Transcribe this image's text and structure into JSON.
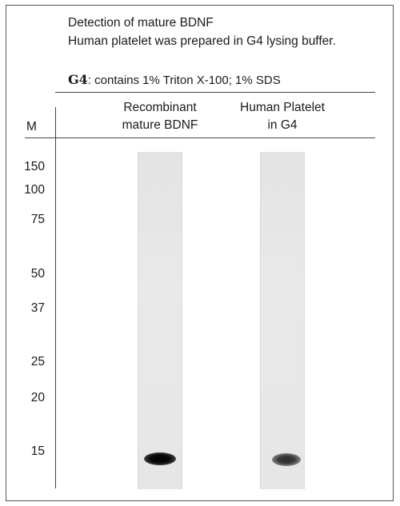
{
  "header": {
    "line1": "Detection of mature BDNF",
    "line2": "Human platelet was prepared in G4 lysing buffer.",
    "buffer_name": "G4",
    "buffer_desc": ": contains 1% Triton X-100; 1% SDS"
  },
  "columns": {
    "marker": "M",
    "lane1": [
      "Recombinant",
      "mature BDNF"
    ],
    "lane2": [
      "Human Platelet",
      "in G4"
    ]
  },
  "markers": [
    "150",
    "100",
    "75",
    "50",
    "37",
    "25",
    "20",
    "15"
  ],
  "colors": {
    "band_strong": "#0a0a0a",
    "band_weak": "#3a3a3a",
    "lane_bg": "#e6e6e6"
  }
}
